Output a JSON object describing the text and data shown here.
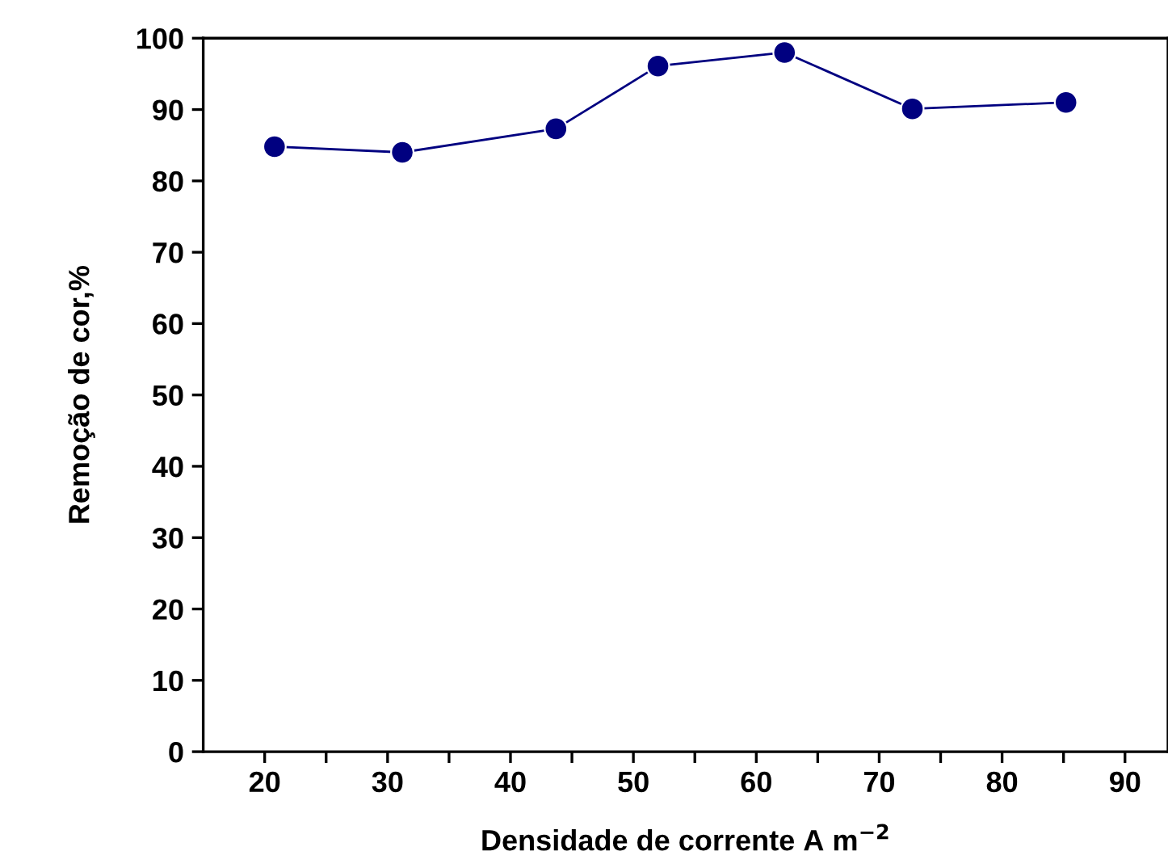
{
  "chart_data": {
    "type": "line",
    "xlabel": "Densidade de corrente A m$^{−2}$",
    "ylabel": "Remoção de cor,%",
    "x": [
      20.8,
      31.2,
      43.7,
      52.0,
      62.3,
      72.7,
      85.2
    ],
    "series": [
      {
        "color": "#000080",
        "values": [
          84.8,
          84.0,
          87.3,
          96.1,
          98.0,
          90.1,
          91.0
        ]
      }
    ],
    "xlim": [
      15,
      93.5
    ],
    "ylim": [
      0,
      100
    ],
    "xticks": [
      20,
      {
        "value": 25,
        "label": null
      },
      30,
      {
        "value": 35,
        "label": null
      },
      40,
      {
        "value": 45,
        "label": null
      },
      50,
      {
        "value": 55,
        "label": null
      },
      60,
      {
        "value": 65,
        "label": null
      },
      70,
      {
        "value": 75,
        "label": null
      },
      80,
      {
        "value": 85,
        "label": null
      },
      90
    ],
    "yticks": [
      0,
      10,
      20,
      30,
      40,
      50,
      60,
      70,
      80,
      90,
      100
    ],
    "marker": "circle",
    "line_style": "solid",
    "grid": false
  }
}
